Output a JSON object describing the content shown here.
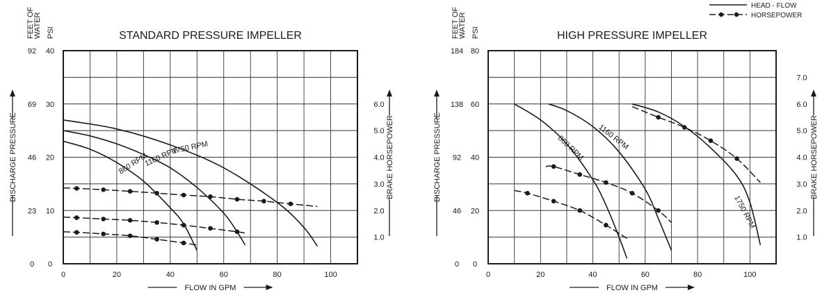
{
  "legend": {
    "head_flow": "HEAD - FLOW",
    "horsepower": "HORSEPOWER"
  },
  "left_axis_labels": {
    "feet": [
      "FEET OF",
      "WATER"
    ],
    "psi": "PSI",
    "discharge": "DISCHARGE PRESSURE"
  },
  "right_axis_label": "BRAKE HORSEPOWER",
  "x_axis_label": "FLOW IN GPM",
  "colors": {
    "ink": "#1a1a1a",
    "grid": "#333333"
  },
  "chart_data": [
    {
      "type": "line",
      "title": "STANDARD PRESSURE IMPELLER",
      "xlabel": "FLOW IN GPM",
      "ylabel": "DISCHARGE PRESSURE",
      "y2label": "BRAKE HORSEPOWER",
      "xlim": [
        0,
        110
      ],
      "ylim": [
        0,
        40
      ],
      "y2lim": [
        0,
        8.0
      ],
      "x_ticks": [
        0,
        20,
        40,
        60,
        80,
        100
      ],
      "psi_ticks": [
        0,
        10,
        20,
        30,
        40
      ],
      "feet_ticks": [
        {
          "psi": 0,
          "label": "0"
        },
        {
          "psi": 10,
          "label": "23"
        },
        {
          "psi": 20,
          "label": "46"
        },
        {
          "psi": 30,
          "label": "69"
        },
        {
          "psi": 40,
          "label": "92"
        }
      ],
      "hp_ticks": [
        1.0,
        2.0,
        3.0,
        4.0,
        5.0,
        6.0
      ],
      "hp_tick_labels": [
        "1.0",
        "2.0",
        "3.0",
        "4.0",
        "5.0",
        "6.0"
      ],
      "grid": true,
      "head_series": [
        {
          "name": "1750 RPM",
          "label_at": [
            41,
            20.7
          ],
          "label_angle": -12,
          "x": [
            0,
            20,
            40,
            60,
            80,
            90,
            95
          ],
          "y": [
            27,
            25.3,
            22.3,
            18,
            11.5,
            6.8,
            3.3
          ]
        },
        {
          "name": "1160 RPM",
          "label_at": [
            31,
            18.3
          ],
          "label_angle": -25,
          "x": [
            0,
            10,
            20,
            30,
            40,
            50,
            60,
            65,
            68
          ],
          "y": [
            25,
            24,
            22.5,
            20.5,
            18,
            14.3,
            9.5,
            6,
            3.5
          ]
        },
        {
          "name": "860 RPM",
          "label_at": [
            21.5,
            16.8
          ],
          "label_angle": -33,
          "x": [
            0,
            10,
            20,
            30,
            40,
            45,
            50
          ],
          "y": [
            23,
            21.5,
            19,
            15.5,
            10.5,
            7.5,
            2.5
          ]
        }
      ],
      "hp_series": [
        {
          "name": "1750 RPM",
          "x": [
            0,
            5,
            15,
            25,
            35,
            45,
            55,
            65,
            75,
            85,
            95
          ],
          "y": [
            2.85,
            2.83,
            2.78,
            2.72,
            2.65,
            2.58,
            2.52,
            2.42,
            2.35,
            2.25,
            2.15
          ],
          "dots": [
            5,
            15,
            25,
            35,
            45,
            55,
            65,
            75,
            85
          ]
        },
        {
          "name": "1160 RPM",
          "x": [
            0,
            5,
            15,
            25,
            35,
            45,
            55,
            65,
            68
          ],
          "y": [
            1.75,
            1.73,
            1.68,
            1.63,
            1.55,
            1.45,
            1.33,
            1.2,
            1.15
          ],
          "dots": [
            5,
            15,
            25,
            35,
            45,
            55,
            65
          ]
        },
        {
          "name": "860 RPM",
          "x": [
            0,
            5,
            15,
            25,
            35,
            45,
            50
          ],
          "y": [
            1.2,
            1.18,
            1.12,
            1.05,
            0.92,
            0.78,
            0.7
          ],
          "dots": [
            5,
            15,
            25,
            35,
            45
          ]
        }
      ]
    },
    {
      "type": "line",
      "title": "HIGH PRESSURE IMPELLER",
      "xlabel": "FLOW IN GPM",
      "ylabel": "DISCHARGE PRESSURE",
      "y2label": "BRAKE HORSEPOWER",
      "xlim": [
        0,
        110
      ],
      "ylim": [
        0,
        80
      ],
      "y2lim": [
        0,
        8.0
      ],
      "x_ticks": [
        0,
        20,
        40,
        60,
        80,
        100
      ],
      "psi_ticks": [
        0,
        20,
        40,
        60,
        80
      ],
      "feet_ticks": [
        {
          "psi": 0,
          "label": "0"
        },
        {
          "psi": 20,
          "label": "46"
        },
        {
          "psi": 40,
          "label": "92"
        },
        {
          "psi": 60,
          "label": "138"
        },
        {
          "psi": 80,
          "label": "184"
        }
      ],
      "hp_ticks": [
        1.0,
        2.0,
        3.0,
        4.0,
        5.0,
        6.0,
        7.0
      ],
      "hp_tick_labels": [
        "1.0",
        "2.0",
        "3.0",
        "4.0",
        "5.0",
        "6.0",
        "7.0"
      ],
      "grid": true,
      "head_series": [
        {
          "name": "1160 RPM",
          "label_at": [
            42,
            51
          ],
          "label_angle": 38,
          "x": [
            23,
            30,
            40,
            50,
            60,
            65,
            70
          ],
          "y": [
            60,
            57.5,
            51.5,
            42,
            28,
            17,
            5
          ]
        },
        {
          "name": "860 RPM",
          "label_at": [
            26.5,
            47
          ],
          "label_angle": 44,
          "x": [
            10,
            20,
            30,
            40,
            45,
            50,
            53
          ],
          "y": [
            60,
            54,
            45,
            31.5,
            22,
            10,
            2
          ]
        },
        {
          "name": "1750 RPM",
          "label_at": [
            94,
            25
          ],
          "label_angle": 62,
          "x": [
            55,
            65,
            75,
            85,
            95,
            100,
            104
          ],
          "y": [
            60,
            57,
            51.5,
            43.5,
            33,
            23,
            7
          ]
        }
      ],
      "hp_series": [
        {
          "name": "1750 RPM",
          "x": [
            55,
            65,
            75,
            85,
            95,
            104
          ],
          "y": [
            5.9,
            5.5,
            5.12,
            4.62,
            3.95,
            3.05
          ],
          "dots": [
            65,
            75,
            85,
            95
          ]
        },
        {
          "name": "1160 RPM",
          "x": [
            22,
            25,
            35,
            45,
            55,
            65,
            70
          ],
          "y": [
            3.65,
            3.65,
            3.35,
            3.05,
            2.65,
            2.0,
            1.55
          ],
          "dots": [
            25,
            35,
            45,
            55,
            65
          ]
        },
        {
          "name": "860 RPM",
          "x": [
            10,
            15,
            25,
            35,
            45,
            53
          ],
          "y": [
            2.75,
            2.65,
            2.35,
            2.0,
            1.45,
            0.95
          ],
          "dots": [
            15,
            25,
            35,
            45
          ]
        }
      ]
    }
  ]
}
